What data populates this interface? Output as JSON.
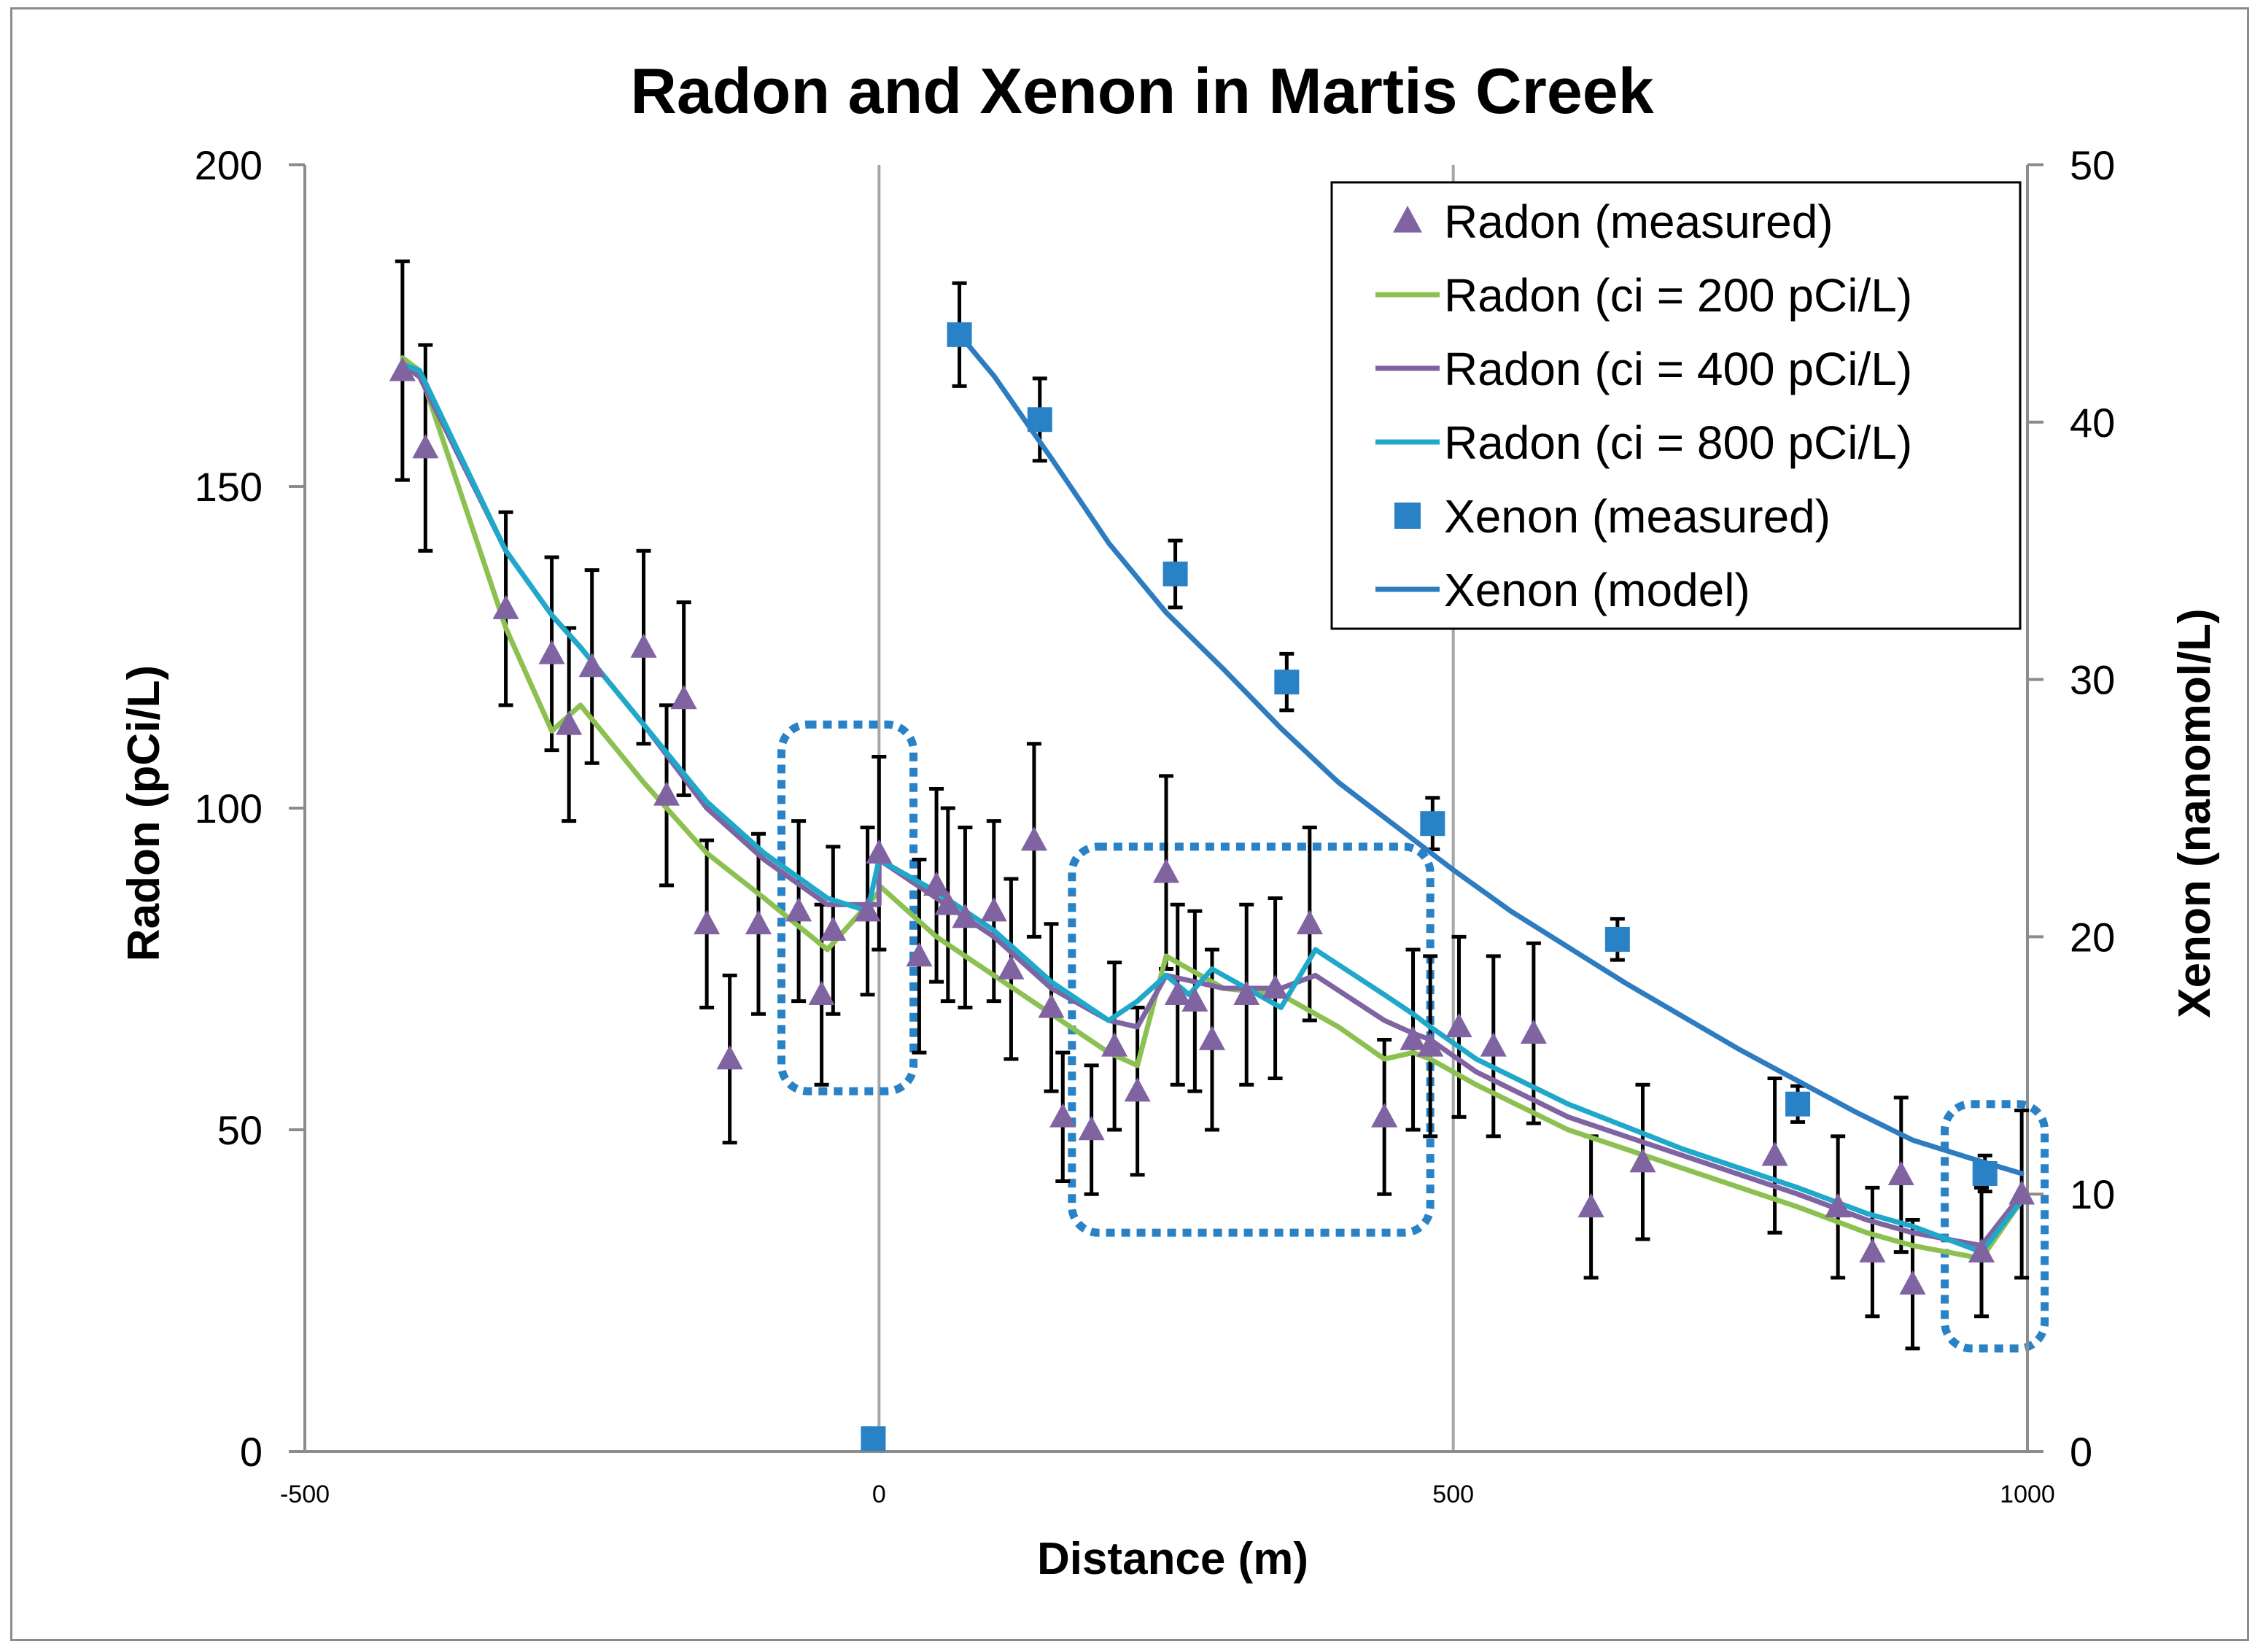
{
  "chart_data": {
    "type": "scatter",
    "title": "Radon and Xenon in Martis Creek",
    "xlabel": "Distance (m)",
    "ylabel": "Radon (pCi/L)",
    "y2label": "Xenon (nanomol/L)",
    "xlim": [
      -500,
      1000
    ],
    "ylim": [
      0,
      200
    ],
    "y2lim": [
      0,
      50
    ],
    "xticks": [
      "-500",
      "0",
      "500",
      "1000"
    ],
    "xtick_values": [
      -500,
      0,
      500,
      1000
    ],
    "yticks": [
      "0",
      "50",
      "100",
      "150",
      "200"
    ],
    "ytick_values": [
      0,
      50,
      100,
      150,
      200
    ],
    "y2ticks": [
      "0",
      "10",
      "20",
      "30",
      "40",
      "50"
    ],
    "y2tick_values": [
      0,
      10,
      20,
      30,
      40,
      50
    ],
    "grid": "vertical",
    "legend_position": "top-right",
    "colors": {
      "radon_measured": "#8064a2",
      "radon_200": "#8cc152",
      "radon_400": "#8064a2",
      "radon_800": "#1fa8c9",
      "xenon_measured": "#2a82c6",
      "xenon_model": "#2e7cc0",
      "error_bar": "#000000",
      "highlight_box": "#2a82c6",
      "gridline": "#a6a6a6"
    },
    "series": [
      {
        "name": "Radon (measured)",
        "kind": "points",
        "marker": "triangle",
        "axis": "left",
        "x": [
          -415,
          -395,
          -325,
          -285,
          -270,
          -250,
          -205,
          -185,
          -170,
          -150,
          -130,
          -105,
          -70,
          -50,
          -40,
          -10,
          0,
          35,
          50,
          60,
          75,
          100,
          115,
          135,
          150,
          160,
          185,
          205,
          225,
          250,
          260,
          275,
          290,
          320,
          345,
          375,
          440,
          465,
          480,
          505,
          535,
          570,
          620,
          665,
          780,
          835,
          865,
          890,
          900,
          960,
          995
        ],
        "y": [
          168,
          156,
          131,
          124,
          113,
          122,
          125,
          102,
          117,
          82,
          61,
          82,
          84,
          71,
          81,
          84,
          93,
          77,
          88,
          85,
          83,
          84,
          75,
          95,
          69,
          52,
          50,
          63,
          56,
          90,
          71,
          70,
          64,
          71,
          72,
          82,
          52,
          64,
          63,
          66,
          63,
          65,
          38,
          45,
          46,
          38,
          31,
          43,
          26,
          31,
          40
        ],
        "error": [
          17,
          16,
          15,
          15,
          15,
          15,
          15,
          14,
          15,
          13,
          13,
          14,
          14,
          14,
          13,
          13,
          15,
          15,
          15,
          15,
          14,
          14,
          14,
          15,
          13,
          10,
          10,
          13,
          13,
          15,
          14,
          14,
          14,
          14,
          14,
          15,
          12,
          14,
          14,
          14,
          14,
          14,
          11,
          12,
          12,
          11,
          10,
          12,
          10,
          10,
          13
        ]
      },
      {
        "name": "Radon (ci = 200 pCi/L)",
        "kind": "line",
        "axis": "left",
        "x": [
          -415,
          -400,
          -325,
          -285,
          -260,
          -205,
          -150,
          -100,
          -45,
          0,
          0,
          50,
          100,
          150,
          200,
          225,
          250,
          300,
          350,
          400,
          440,
          465,
          480,
          520,
          600,
          700,
          800,
          860,
          900,
          960,
          995
        ],
        "y": [
          170,
          168,
          128,
          112,
          116,
          104,
          93,
          86,
          78,
          87,
          88,
          80,
          74,
          68,
          62,
          60,
          77,
          72,
          71,
          66,
          61,
          62,
          61,
          57,
          50,
          44,
          38,
          34,
          32,
          30,
          39
        ]
      },
      {
        "name": "Radon (ci = 400 pCi/L)",
        "kind": "line",
        "axis": "left",
        "x": [
          -415,
          -400,
          -325,
          -285,
          -260,
          -205,
          -150,
          -100,
          -45,
          0,
          0,
          50,
          100,
          150,
          200,
          225,
          250,
          300,
          350,
          380,
          440,
          465,
          480,
          520,
          600,
          700,
          800,
          860,
          900,
          960,
          995
        ],
        "y": [
          169,
          167,
          140,
          130,
          125,
          113,
          100,
          92,
          85,
          85,
          92,
          86,
          80,
          72,
          67,
          66,
          74,
          72,
          72,
          74,
          67,
          65,
          64,
          59,
          52,
          46,
          40,
          36,
          34,
          32,
          40
        ]
      },
      {
        "name": "Radon (ci = 800 pCi/L)",
        "kind": "line",
        "axis": "left",
        "x": [
          -415,
          -400,
          -325,
          -285,
          -260,
          -205,
          -150,
          -100,
          -45,
          -10,
          0,
          50,
          100,
          150,
          200,
          225,
          250,
          270,
          290,
          350,
          380,
          440,
          465,
          480,
          520,
          600,
          700,
          800,
          860,
          900,
          960,
          995
        ],
        "y": [
          169,
          168,
          140,
          130,
          125,
          113,
          101,
          93,
          86,
          84,
          92,
          87,
          81,
          73,
          67,
          70,
          74,
          71,
          75,
          69,
          78,
          71,
          68,
          66,
          61,
          54,
          47,
          41,
          37,
          35,
          31,
          39
        ]
      },
      {
        "name": "Xenon (measured)",
        "kind": "points",
        "marker": "square",
        "axis": "right",
        "x": [
          -5,
          70,
          140,
          258,
          355,
          482,
          643,
          800,
          963
        ],
        "y": [
          0.5,
          43.4,
          40.1,
          34.1,
          29.9,
          24.4,
          19.9,
          13.5,
          10.8
        ],
        "error": [
          0,
          2.0,
          1.6,
          1.3,
          1.1,
          1.0,
          0.8,
          0.7,
          0.7
        ]
      },
      {
        "name": "Xenon (model)",
        "kind": "line",
        "axis": "right",
        "x": [
          70,
          100,
          150,
          200,
          250,
          300,
          350,
          400,
          450,
          500,
          550,
          600,
          650,
          700,
          750,
          800,
          850,
          900,
          950,
          995
        ],
        "y": [
          43.4,
          41.8,
          38.6,
          35.3,
          32.6,
          30.4,
          28.1,
          26.0,
          24.3,
          22.6,
          21.0,
          19.6,
          18.2,
          16.9,
          15.6,
          14.4,
          13.2,
          12.1,
          11.4,
          10.8
        ]
      }
    ],
    "highlight_regions": [
      {
        "x": [
          -85,
          30
        ],
        "y": [
          56,
          113
        ]
      },
      {
        "x": [
          168,
          480
        ],
        "y": [
          34,
          94
        ]
      },
      {
        "x": [
          928,
          1015
        ],
        "y": [
          16,
          54
        ]
      }
    ]
  }
}
